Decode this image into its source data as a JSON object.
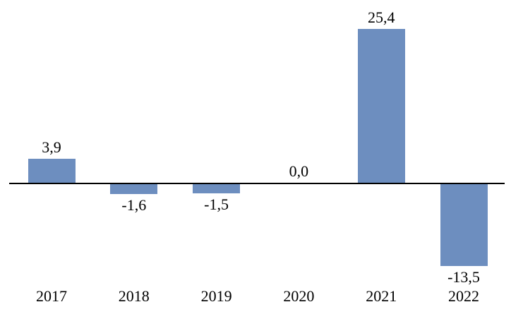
{
  "chart_data": {
    "type": "bar",
    "categories": [
      "2017",
      "2018",
      "2019",
      "2020",
      "2021",
      "2022"
    ],
    "values": [
      3.9,
      -1.6,
      -1.5,
      0.0,
      25.4,
      -13.5
    ],
    "value_labels": [
      "3,9",
      "-1,6",
      "-1,5",
      "0,0",
      "25,4",
      "-13,5"
    ],
    "title": "",
    "xlabel": "",
    "ylabel": "",
    "ylim": [
      -15,
      27
    ],
    "grid": false,
    "legend": null,
    "decimal_separator": ",",
    "bar_color": "#6D8EBF",
    "axis_color": "#000000",
    "label_color": "#000000",
    "background_color": "#FFFFFF"
  }
}
